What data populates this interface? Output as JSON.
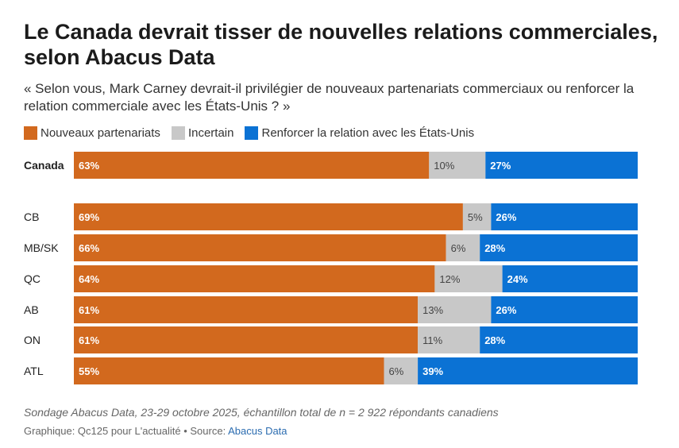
{
  "title": "Le Canada devrait tisser de nouvelles relations commerciales, selon Abacus Data",
  "subtitle": "« Selon vous, Mark Carney devrait-il privilégier de nouveaux partenariats commerciaux ou renforcer la relation commerciale avec les États-Unis ? »",
  "colors": {
    "nouveaux": "#d2691e",
    "incertain": "#c8c8c8",
    "renforcer": "#0b72d4"
  },
  "chart_data": {
    "type": "bar",
    "orientation": "horizontal",
    "stacked": true,
    "categories": [
      "Canada",
      "CB",
      "MB/SK",
      "QC",
      "AB",
      "ON",
      "ATL"
    ],
    "series": [
      {
        "name": "Nouveaux partenariats",
        "values": [
          63,
          69,
          66,
          64,
          61,
          61,
          55
        ]
      },
      {
        "name": "Incertain",
        "values": [
          10,
          5,
          6,
          12,
          13,
          11,
          6
        ]
      },
      {
        "name": "Renforcer la relation avec les États-Unis",
        "values": [
          27,
          26,
          28,
          24,
          26,
          28,
          39
        ]
      }
    ],
    "value_suffix": "%",
    "xlim": [
      0,
      100
    ],
    "legend_position": "top-left",
    "grid": false
  },
  "footnote": "Sondage Abacus Data, 23-29 octobre 2025, échantillon total de n = 2 922 répondants canadiens",
  "credit": {
    "prefix": "Graphique: Qc125 pour L'actualité • Source: ",
    "source_link": "Abacus Data"
  }
}
